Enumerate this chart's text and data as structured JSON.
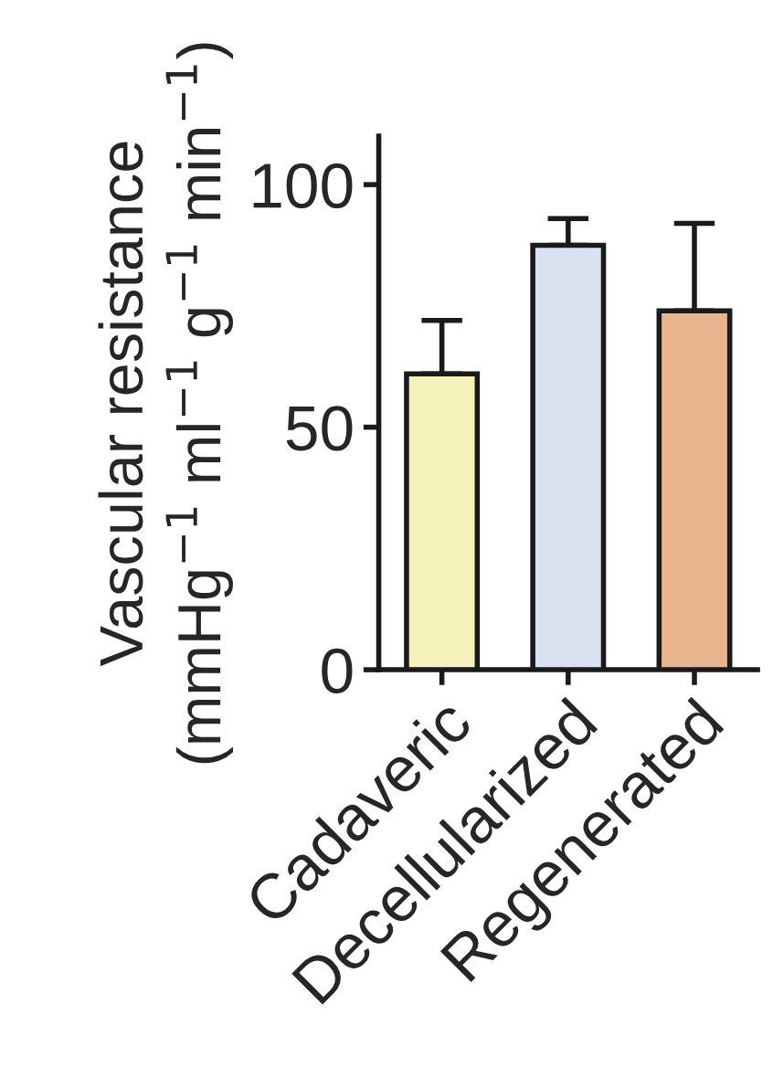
{
  "chart_data": {
    "type": "bar",
    "ylabel": "Vascular resistance\n(mmHg$^{−1}$ ml$^{−1}$ g$^{−1}$ min$^{−1}$)",
    "categories": [
      "Cadaveric",
      "Decellularized",
      "Regenerated"
    ],
    "values": [
      61,
      87.5,
      74
    ],
    "colors": [
      "#f5f2bc",
      "#d8e2f0",
      "#e8b58e"
    ],
    "errors": [
      [
        61,
        72
      ],
      [
        87.5,
        93
      ],
      [
        74,
        92
      ]
    ],
    "ylim": [
      0,
      110
    ],
    "yticks": [
      0,
      50,
      100
    ],
    "grid": false,
    "legend": false
  }
}
